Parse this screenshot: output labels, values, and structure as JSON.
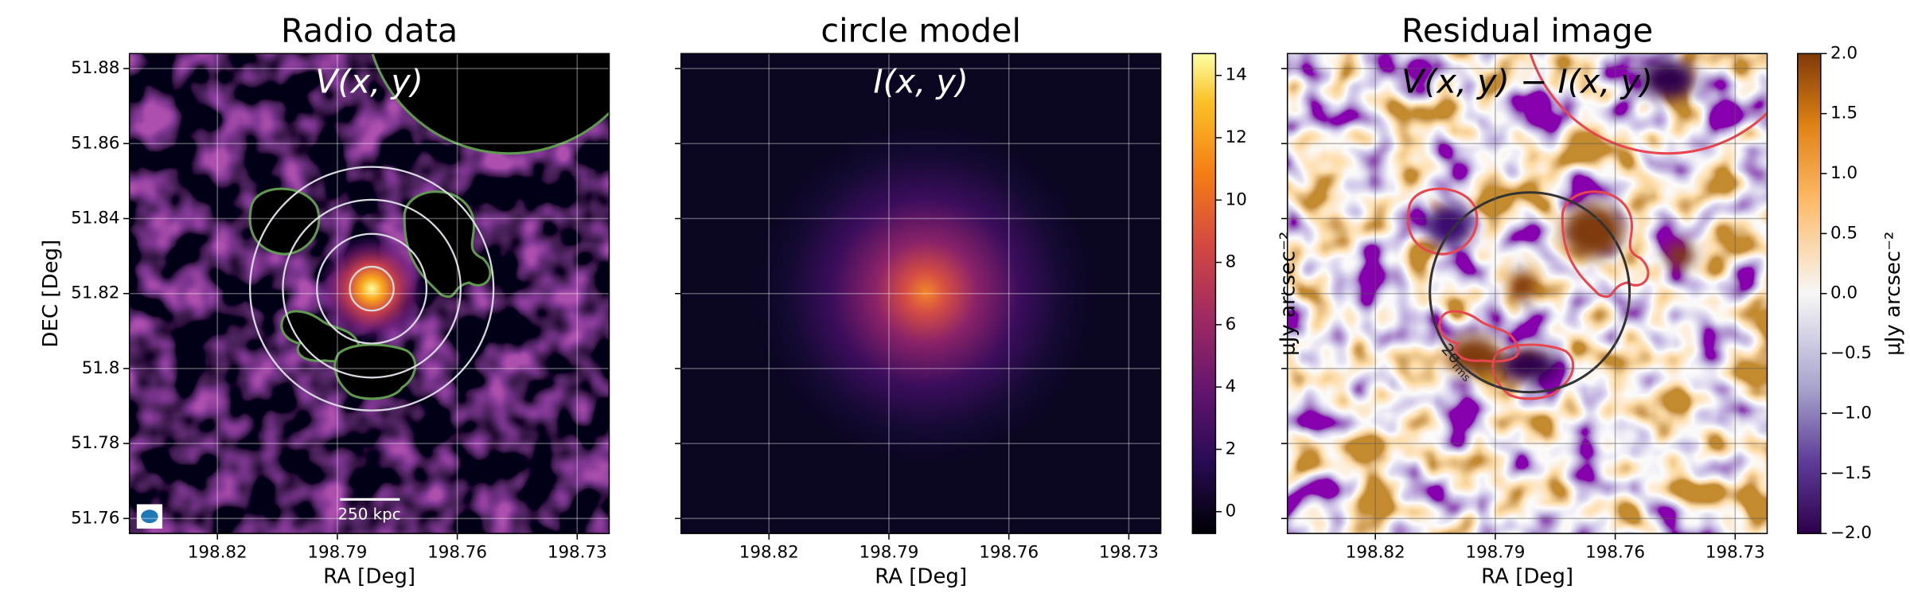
{
  "chart_data": [
    {
      "type": "image",
      "title": "Radio data",
      "annotation": "V(x, y)",
      "xlabel": "RA [Deg]",
      "ylabel": "DEC [Deg]",
      "xlim": [
        198.842,
        198.722
      ],
      "xticks": [
        198.82,
        198.79,
        198.76,
        198.73
      ],
      "ylim": [
        51.756,
        51.884
      ],
      "yticks": [
        51.76,
        51.78,
        51.8,
        51.82,
        51.84,
        51.86,
        51.88
      ],
      "scalebar_label": "250 kpc"
    },
    {
      "type": "image",
      "title": "circle model",
      "annotation": "I(x, y)",
      "xlabel": "RA [Deg]",
      "xlim": [
        198.842,
        198.722
      ],
      "xticks": [
        198.82,
        198.79,
        198.76,
        198.73
      ],
      "ylim": [
        51.756,
        51.884
      ],
      "yticks": [
        51.76,
        51.78,
        51.8,
        51.82,
        51.84,
        51.86,
        51.88
      ],
      "colorbar": {
        "label": "μJy arcsec⁻²",
        "lim": [
          -0.7,
          14.7
        ],
        "ticks": [
          0,
          2,
          4,
          6,
          8,
          10,
          12,
          14
        ]
      }
    },
    {
      "type": "image",
      "title": "Residual image",
      "annotation": "V(x, y) − I(x, y)",
      "xlabel": "RA [Deg]",
      "circle_label": "2σ",
      "circle_label_sub": "rms",
      "xlim": [
        198.842,
        198.722
      ],
      "xticks": [
        198.82,
        198.79,
        198.76,
        198.73
      ],
      "ylim": [
        51.756,
        51.884
      ],
      "yticks": [
        51.76,
        51.78,
        51.8,
        51.82,
        51.84,
        51.86,
        51.88
      ],
      "colorbar": {
        "label": "μJy arcsec⁻²",
        "lim": [
          -2,
          2
        ],
        "ticks": [
          {
            "value": -2,
            "label": "−2.0"
          },
          {
            "value": -1.5,
            "label": "−1.5"
          },
          {
            "value": -1,
            "label": "−1.0"
          },
          {
            "value": -0.5,
            "label": "−0.5"
          },
          {
            "value": 0,
            "label": "0.0"
          },
          0.5,
          {
            "value": 1,
            "label": "1.0"
          },
          1.5,
          {
            "value": 2,
            "label": "2.0"
          }
        ]
      }
    }
  ]
}
